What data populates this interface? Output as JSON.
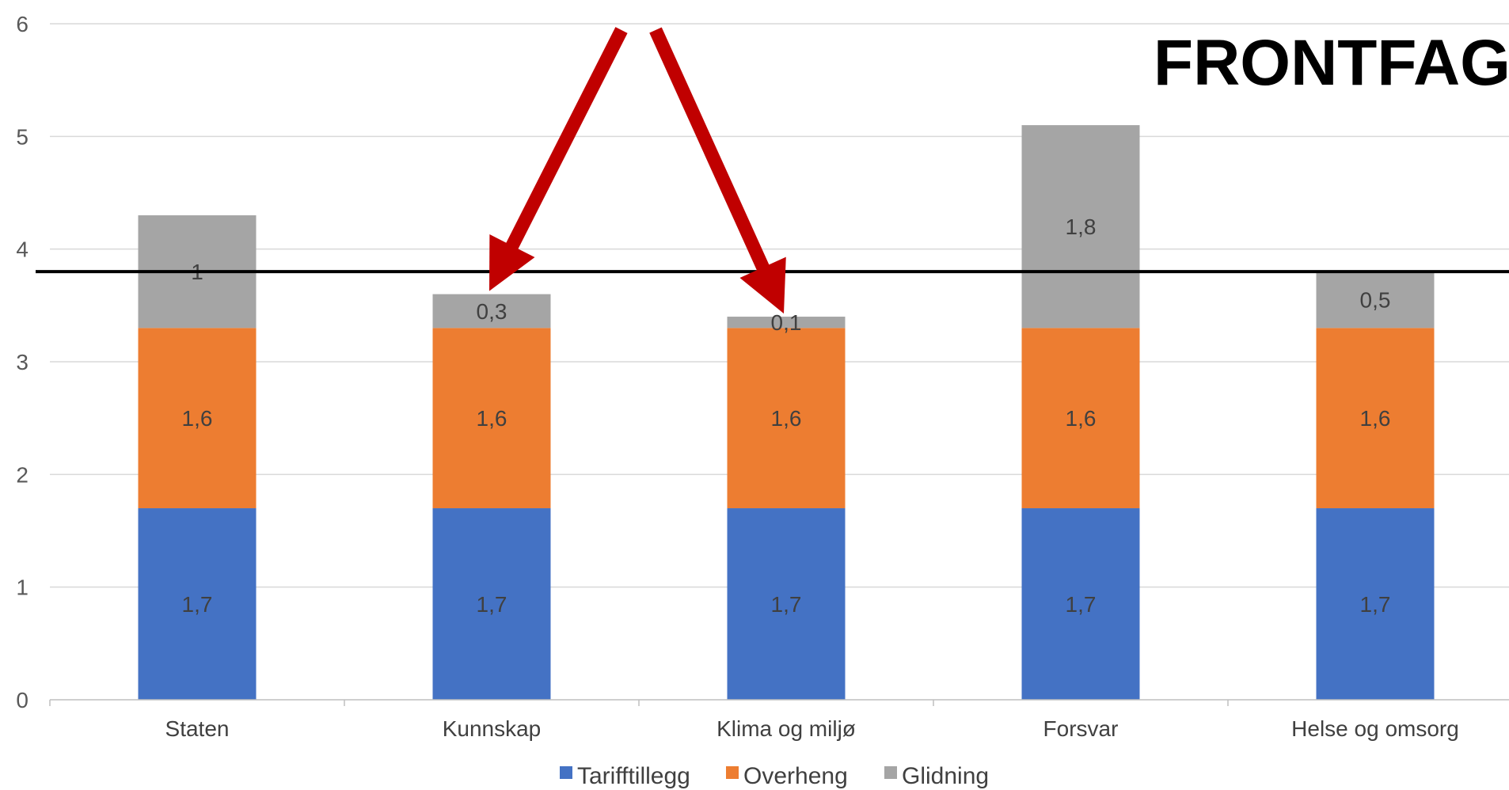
{
  "chart_data": {
    "type": "bar",
    "stacked": true,
    "title": "FRONTFAG",
    "categories": [
      "Staten",
      "Kunnskap",
      "Klima og miljø",
      "Forsvar",
      "Helse og omsorg"
    ],
    "series": [
      {
        "name": "Tarifftillegg",
        "color": "#4472C4",
        "values": [
          1.7,
          1.7,
          1.7,
          1.7,
          1.7
        ],
        "labels": [
          "1,7",
          "1,7",
          "1,7",
          "1,7",
          "1,7"
        ]
      },
      {
        "name": "Overheng",
        "color": "#ED7D31",
        "values": [
          1.6,
          1.6,
          1.6,
          1.6,
          1.6
        ],
        "labels": [
          "1,6",
          "1,6",
          "1,6",
          "1,6",
          "1,6"
        ]
      },
      {
        "name": "Glidning",
        "color": "#A5A5A5",
        "values": [
          1,
          0.3,
          0.1,
          1.8,
          0.5
        ],
        "labels": [
          "1",
          "0,3",
          "0,1",
          "1,8",
          "0,5"
        ]
      }
    ],
    "ylim": [
      0,
      6
    ],
    "yticks": [
      "0",
      "1",
      "2",
      "3",
      "4",
      "5",
      "6"
    ],
    "reference_line": {
      "value": 3.8,
      "color": "#000000"
    },
    "annotation_arrows": {
      "color": "#C00000",
      "targets": [
        "Kunnskap",
        "Klima og miljø"
      ]
    },
    "grid": true,
    "legend_position": "bottom"
  }
}
